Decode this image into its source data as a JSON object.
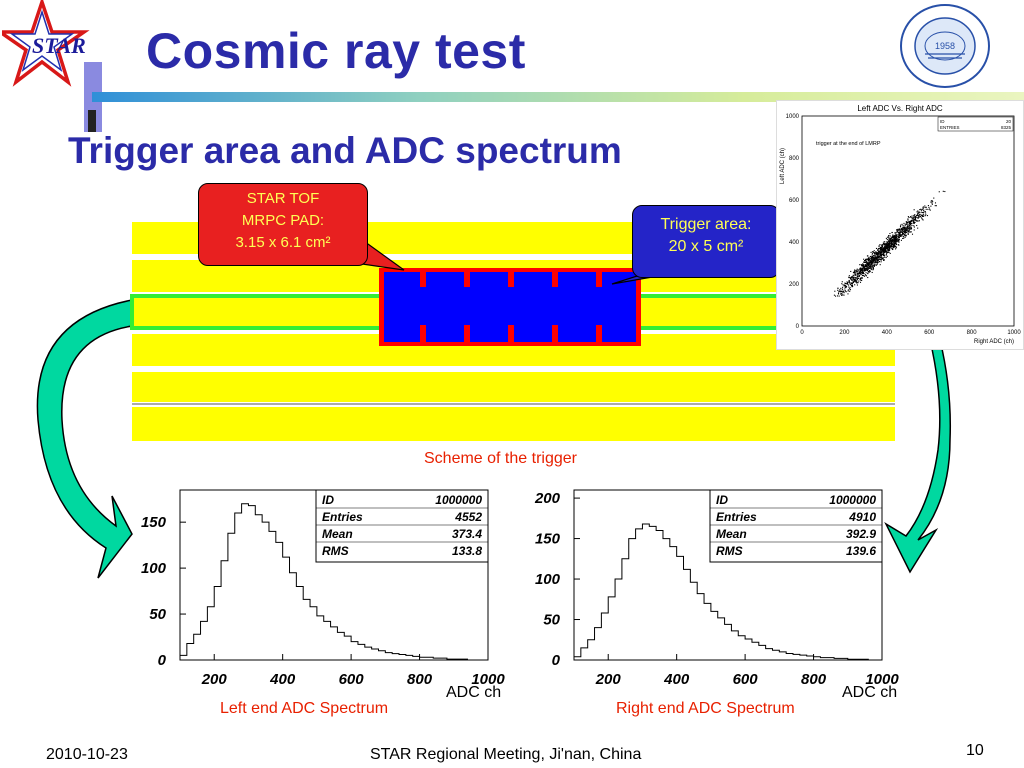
{
  "slide": {
    "title": "Cosmic ray test",
    "subtitle": "Trigger area and ADC spectrum",
    "logo_left_text": "STAR",
    "logo_right_text": "1958",
    "callout_red": {
      "line1": "STAR TOF",
      "line2": "MRPC PAD:",
      "line3": "3.15 x 6.1 cm²"
    },
    "callout_blue": {
      "line1": "Trigger area:",
      "line2": "20 x 5 cm²"
    },
    "scheme_caption": "Scheme of the trigger",
    "left_caption": "Left end ADC Spectrum",
    "right_caption": "Right end ADC Spectrum",
    "left_xunit": "ADC ch",
    "right_xunit": "ADC ch",
    "footer_date": "2010-10-23",
    "footer_center": "STAR Regional Meeting, Ji'nan, China",
    "page_number": "10"
  },
  "colors": {
    "title_blue": "#2b2ba8",
    "strip_yellow": "#ffff00",
    "pad_blue": "#0000ff",
    "pad_red": "#ff0000",
    "trigger_green": "#33ee33",
    "arrow_fill": "#00d8a0",
    "caption_red": "#e82000"
  },
  "chart_data": [
    {
      "type": "scatter",
      "title": "Left ADC Vs. Right ADC",
      "xlabel": "Right ADC (ch)",
      "ylabel": "Left ADC (ch)",
      "annotation": "trigger at the end of LMRP",
      "stats": {
        "ID": "20",
        "ENTRIES": "8325"
      },
      "xlim": [
        0,
        1000
      ],
      "ylim": [
        0,
        1000
      ],
      "x_ticks": [
        "0",
        "200",
        "400",
        "600",
        "800",
        "1000"
      ],
      "y_ticks": [
        "0",
        "200",
        "400",
        "600",
        "800",
        "1000"
      ],
      "cluster": {
        "x_center": 380,
        "y_center": 360,
        "trend_slope": 0.95
      }
    },
    {
      "type": "area",
      "title": "",
      "stats": {
        "ID": "1000000",
        "Entries": "4552",
        "Mean": "373.4",
        "RMS": "133.8"
      },
      "xlim": [
        100,
        1000
      ],
      "ylim": [
        0,
        185
      ],
      "x_ticks": [
        "200",
        "400",
        "600",
        "800",
        "1000"
      ],
      "y_ticks": [
        "0",
        "50",
        "100",
        "150"
      ],
      "x": [
        110,
        130,
        150,
        170,
        190,
        210,
        230,
        250,
        270,
        290,
        310,
        330,
        350,
        370,
        390,
        410,
        430,
        450,
        470,
        490,
        510,
        530,
        550,
        570,
        590,
        610,
        630,
        650,
        670,
        690,
        710,
        730,
        750,
        770,
        790,
        810,
        830,
        850,
        870,
        890,
        910,
        930,
        950,
        970,
        990
      ],
      "values": [
        5,
        18,
        28,
        42,
        58,
        80,
        108,
        138,
        160,
        170,
        168,
        158,
        150,
        140,
        128,
        112,
        95,
        80,
        66,
        58,
        48,
        42,
        36,
        30,
        26,
        20,
        17,
        14,
        12,
        10,
        8,
        7,
        6,
        5,
        4,
        3,
        3,
        2,
        2,
        1,
        1,
        1,
        0,
        0,
        0
      ]
    },
    {
      "type": "area",
      "title": "",
      "stats": {
        "ID": "1000000",
        "Entries": "4910",
        "Mean": "392.9",
        "RMS": "139.6"
      },
      "xlim": [
        100,
        1000
      ],
      "ylim": [
        0,
        210
      ],
      "x_ticks": [
        "200",
        "400",
        "600",
        "800",
        "1000"
      ],
      "y_ticks": [
        "0",
        "50",
        "100",
        "150",
        "200"
      ],
      "x": [
        110,
        130,
        150,
        170,
        190,
        210,
        230,
        250,
        270,
        290,
        310,
        330,
        350,
        370,
        390,
        410,
        430,
        450,
        470,
        490,
        510,
        530,
        550,
        570,
        590,
        610,
        630,
        650,
        670,
        690,
        710,
        730,
        750,
        770,
        790,
        810,
        830,
        850,
        870,
        890,
        910,
        930,
        950,
        970,
        990
      ],
      "values": [
        4,
        15,
        25,
        40,
        58,
        78,
        100,
        125,
        150,
        162,
        168,
        165,
        160,
        150,
        140,
        128,
        112,
        96,
        82,
        70,
        60,
        52,
        44,
        36,
        30,
        26,
        22,
        18,
        14,
        12,
        10,
        8,
        7,
        6,
        5,
        4,
        3,
        3,
        2,
        2,
        1,
        1,
        1,
        0,
        0
      ]
    }
  ]
}
